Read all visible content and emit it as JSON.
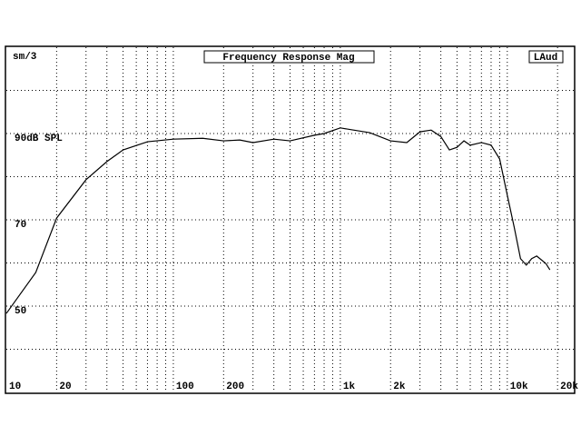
{
  "chart_data": {
    "type": "line",
    "title": "Frequency Response Mag",
    "subtitle": "sm/3",
    "annotation": "LAud",
    "log_x": true,
    "grid": true,
    "color": "#000000",
    "xlim": [
      10,
      25000
    ],
    "ylim": [
      30,
      110
    ],
    "xticks": [
      10,
      20,
      100,
      200,
      {
        "value": 1000,
        "label": "1k"
      },
      {
        "value": 2000,
        "label": "2k"
      },
      {
        "value": 10000,
        "label": "10k"
      },
      {
        "value": 20000,
        "label": "20k"
      }
    ],
    "xminor": [
      30,
      40,
      50,
      60,
      70,
      80,
      90,
      300,
      400,
      500,
      600,
      700,
      800,
      900,
      3000,
      4000,
      5000,
      6000,
      7000,
      8000,
      9000
    ],
    "yticks": [
      {
        "value": 90,
        "label": "90dB SPL"
      },
      70,
      50
    ],
    "yminor": [
      40,
      60,
      80,
      100
    ],
    "x": [
      10,
      15,
      20,
      30,
      40,
      50,
      70,
      100,
      150,
      200,
      250,
      300,
      400,
      500,
      700,
      800,
      1000,
      1200,
      1500,
      2000,
      2500,
      3000,
      3500,
      4000,
      4500,
      5000,
      5500,
      6000,
      7000,
      8000,
      9000,
      10000,
      11000,
      12000,
      13000,
      14000,
      15000,
      17000,
      18000
    ],
    "values": [
      48.3,
      57.8,
      70.4,
      79.3,
      83.5,
      86.2,
      88.1,
      88.7,
      88.9,
      88.3,
      88.5,
      87.9,
      88.7,
      88.3,
      89.6,
      90,
      91.3,
      90.8,
      90.2,
      88.3,
      87.9,
      90.4,
      90.8,
      89.3,
      86.2,
      86.8,
      88.3,
      87.3,
      87.9,
      87.3,
      84.1,
      75.7,
      68.3,
      61,
      59.5,
      61,
      61.6,
      59.9,
      58.4
    ]
  }
}
